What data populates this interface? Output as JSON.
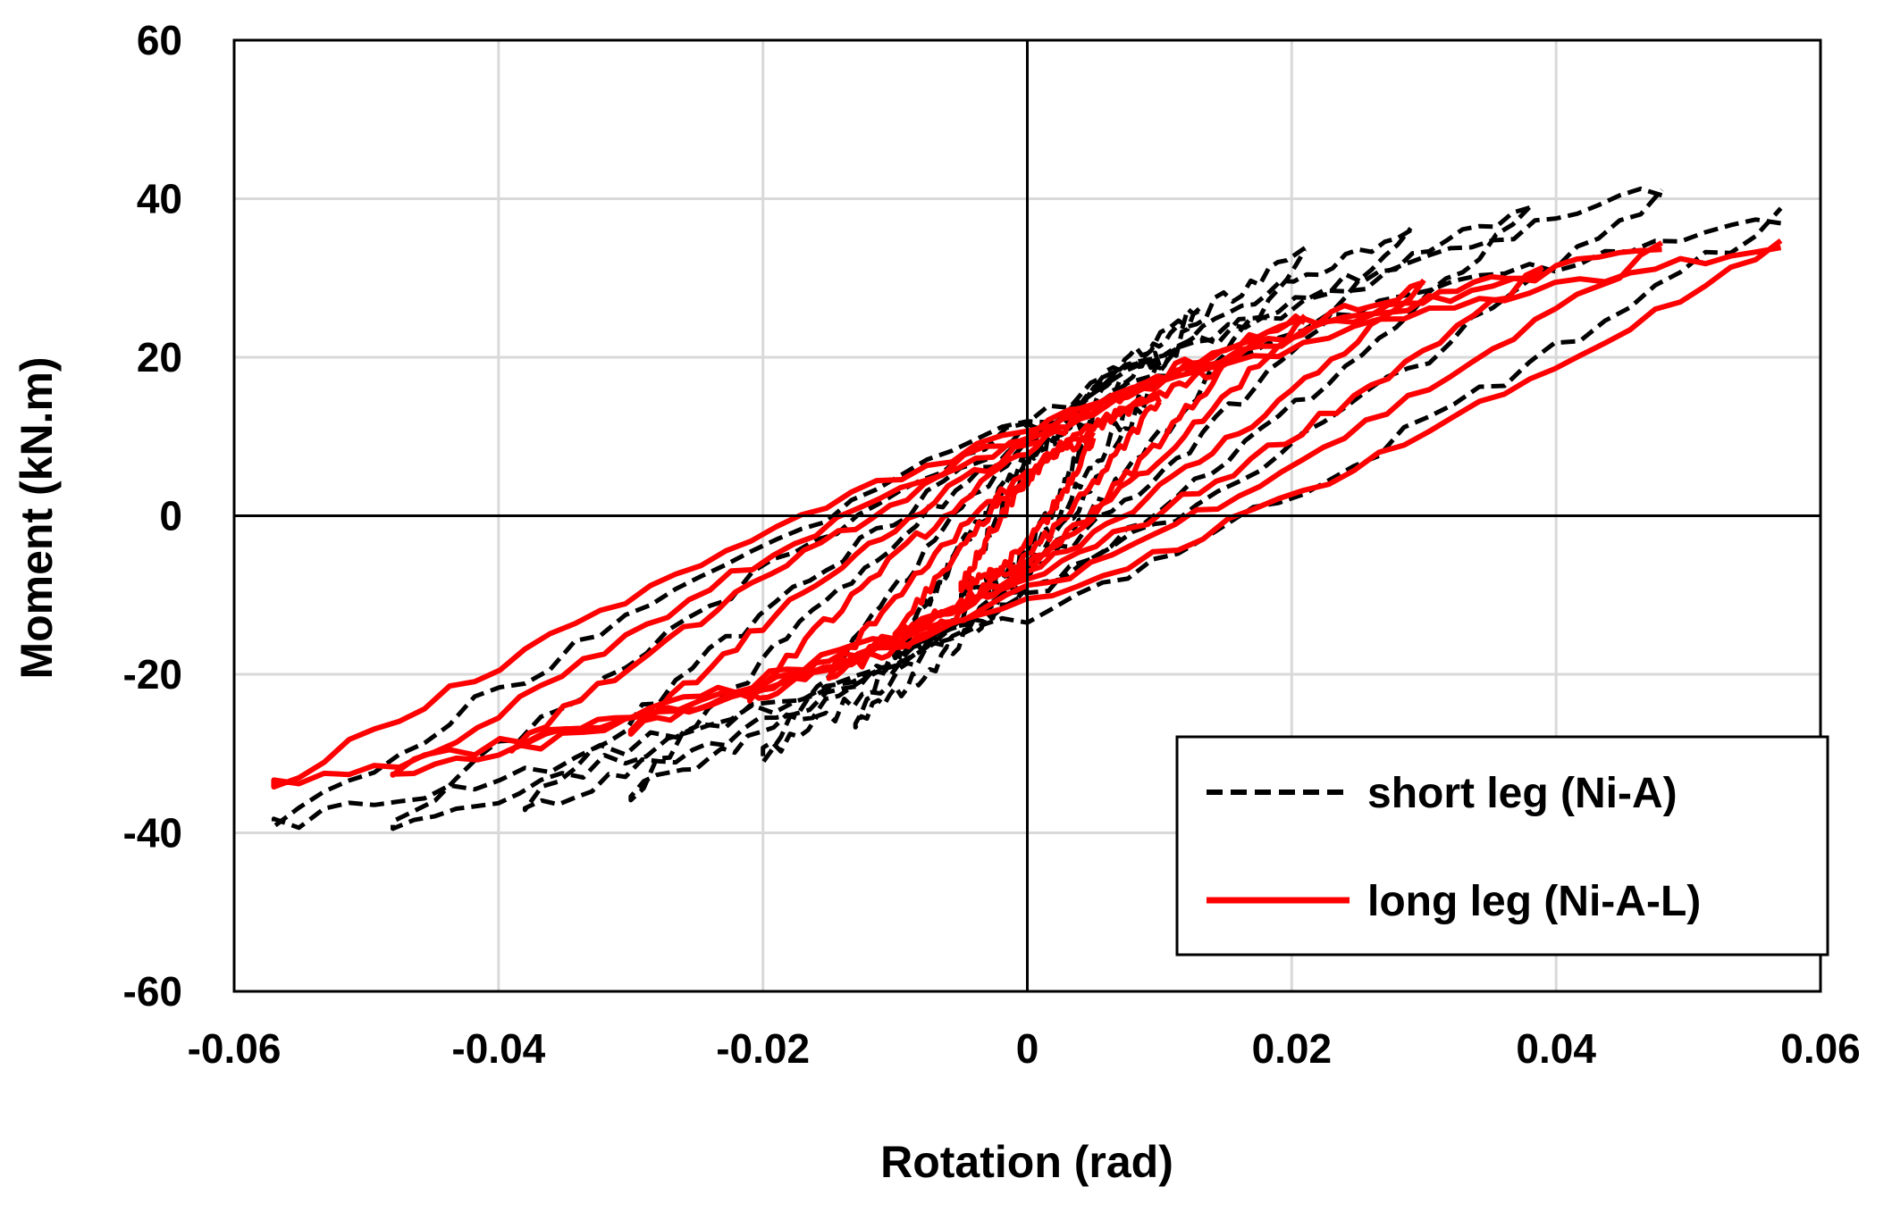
{
  "chart_data": {
    "type": "line",
    "title": "",
    "xlabel": "Rotation (rad)",
    "ylabel": "Moment (kN.m)",
    "xlim": [
      -0.06,
      0.06
    ],
    "ylim": [
      -60,
      60
    ],
    "xticks": [
      -0.06,
      -0.04,
      -0.02,
      0,
      0.02,
      0.04,
      0.06
    ],
    "xtick_labels": [
      "-0.06",
      "-0.04",
      "-0.02",
      "0",
      "0.02",
      "0.04",
      "0.06"
    ],
    "yticks": [
      -60,
      -40,
      -20,
      0,
      20,
      40,
      60
    ],
    "ytick_labels": [
      "-60",
      "-40",
      "-20",
      "0",
      "20",
      "40",
      "60"
    ],
    "grid": true,
    "legend_position": "bottom-right",
    "series": [
      {
        "name": "short leg (Ni-A)",
        "color": "#000000",
        "style": "dashed",
        "cycles": [
          {
            "amp_pos": 0.005,
            "amp_neg": -0.005,
            "m_pos": 12,
            "m_neg": -10,
            "open": 5
          },
          {
            "amp_pos": 0.01,
            "amp_neg": -0.01,
            "m_pos": 20,
            "m_neg": -18,
            "open": 6
          },
          {
            "amp_pos": 0.013,
            "amp_neg": -0.013,
            "m_pos": 26,
            "m_neg": -26,
            "open": 7
          },
          {
            "amp_pos": 0.021,
            "amp_neg": -0.02,
            "m_pos": 33,
            "m_neg": -30,
            "open": 8
          },
          {
            "amp_pos": 0.029,
            "amp_neg": -0.03,
            "m_pos": 36,
            "m_neg": -35,
            "open": 9
          },
          {
            "amp_pos": 0.038,
            "amp_neg": -0.038,
            "m_pos": 38,
            "m_neg": -37,
            "open": 10
          },
          {
            "amp_pos": 0.048,
            "amp_neg": -0.048,
            "m_pos": 41,
            "m_neg": -39,
            "open": 11
          },
          {
            "amp_pos": 0.057,
            "amp_neg": -0.057,
            "m_pos": 38,
            "m_neg": -39,
            "open": 12
          }
        ]
      },
      {
        "name": "long leg (Ni-A-L)",
        "color": "#ff0000",
        "style": "solid",
        "cycles": [
          {
            "amp_pos": 0.005,
            "amp_neg": -0.005,
            "m_pos": 10,
            "m_neg": -9,
            "open": 4
          },
          {
            "amp_pos": 0.01,
            "amp_neg": -0.01,
            "m_pos": 15,
            "m_neg": -15,
            "open": 5
          },
          {
            "amp_pos": 0.015,
            "amp_neg": -0.015,
            "m_pos": 19,
            "m_neg": -20,
            "open": 6
          },
          {
            "amp_pos": 0.021,
            "amp_neg": -0.021,
            "m_pos": 25,
            "m_neg": -23,
            "open": 7
          },
          {
            "amp_pos": 0.03,
            "amp_neg": -0.03,
            "m_pos": 29,
            "m_neg": -27,
            "open": 8
          },
          {
            "amp_pos": 0.039,
            "amp_neg": -0.039,
            "m_pos": 31,
            "m_neg": -29,
            "open": 9
          },
          {
            "amp_pos": 0.048,
            "amp_neg": -0.048,
            "m_pos": 34,
            "m_neg": -33,
            "open": 10
          },
          {
            "amp_pos": 0.057,
            "amp_neg": -0.057,
            "m_pos": 34,
            "m_neg": -34,
            "open": 11
          }
        ]
      }
    ]
  }
}
